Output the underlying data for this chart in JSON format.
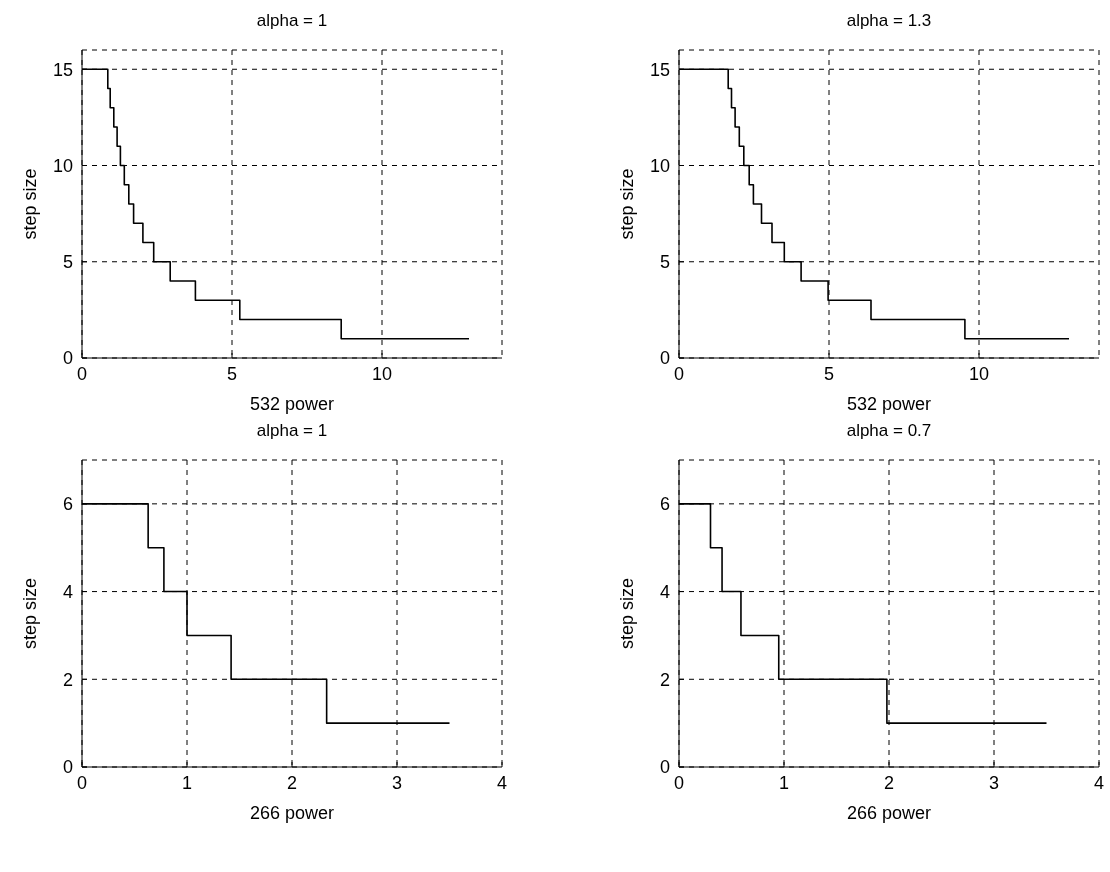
{
  "chart_data": [
    {
      "type": "step",
      "title": "alpha = 1",
      "xlabel": "532 power",
      "ylabel": "step size",
      "xlim": [
        0,
        14
      ],
      "xticks": [
        0,
        5,
        10
      ],
      "ylim": [
        0,
        16
      ],
      "yticks": [
        0,
        5,
        10,
        15
      ],
      "grid": true,
      "line_style": "solid",
      "series": [
        {
          "color": "#000000",
          "x": [
            0,
            0.86,
            0.94,
            1.06,
            1.17,
            1.28,
            1.41,
            1.56,
            1.72,
            2.03,
            2.39,
            2.94,
            3.78,
            5.26,
            8.64,
            12.9
          ],
          "values": [
            15,
            14,
            13,
            12,
            11,
            10,
            9,
            8,
            7,
            6,
            5,
            4,
            3,
            2,
            1,
            1
          ]
        }
      ]
    },
    {
      "type": "step",
      "title": "alpha = 1.3",
      "xlabel": "532 power",
      "ylabel": "step size",
      "xlim": [
        0,
        14
      ],
      "xticks": [
        0,
        5,
        10
      ],
      "ylim": [
        0,
        16
      ],
      "yticks": [
        0,
        5,
        10,
        15
      ],
      "grid": true,
      "line_style": "solid",
      "series": [
        {
          "color": "#000000",
          "x": [
            0,
            1.64,
            1.75,
            1.87,
            2.01,
            2.16,
            2.34,
            2.48,
            2.75,
            3.1,
            3.51,
            4.07,
            4.97,
            6.4,
            9.53,
            13
          ],
          "values": [
            15,
            14,
            13,
            12,
            11,
            10,
            9,
            8,
            7,
            6,
            5,
            4,
            3,
            2,
            1,
            1
          ]
        }
      ]
    },
    {
      "type": "step",
      "title": "alpha = 1",
      "xlabel": "266 power",
      "ylabel": "step size",
      "xlim": [
        0,
        4
      ],
      "xticks": [
        0,
        1,
        2,
        3,
        4
      ],
      "ylim": [
        0,
        7
      ],
      "yticks": [
        0,
        2,
        4,
        6
      ],
      "grid": true,
      "line_style": "solid",
      "series": [
        {
          "color": "#000000",
          "x": [
            0,
            0.63,
            0.78,
            1.0,
            1.42,
            2.33,
            3.5
          ],
          "values": [
            6,
            5,
            4,
            3,
            2,
            1,
            1
          ]
        }
      ]
    },
    {
      "type": "step",
      "title": "alpha = 0.7",
      "xlabel": "266 power",
      "ylabel": "step size",
      "xlim": [
        0,
        4
      ],
      "xticks": [
        0,
        1,
        2,
        3,
        4
      ],
      "ylim": [
        0,
        7
      ],
      "yticks": [
        0,
        2,
        4,
        6
      ],
      "grid": true,
      "line_style": "solid",
      "series": [
        {
          "color": "#000000",
          "x": [
            0,
            0.3,
            0.41,
            0.59,
            0.95,
            1.98,
            3.5
          ],
          "values": [
            6,
            5,
            4,
            3,
            2,
            1,
            1
          ]
        }
      ]
    }
  ]
}
